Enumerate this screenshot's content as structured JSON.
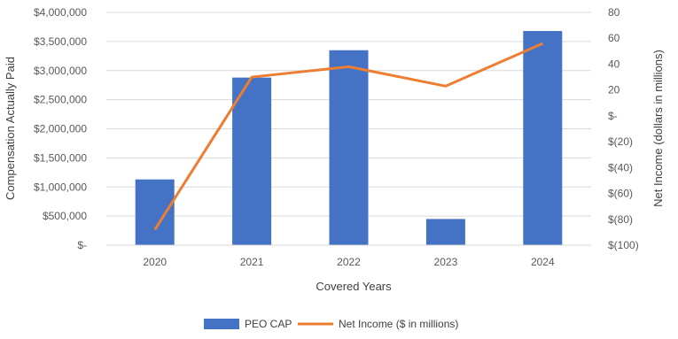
{
  "chart_data": {
    "type": "bar",
    "categories": [
      "2020",
      "2021",
      "2022",
      "2023",
      "2024"
    ],
    "series": [
      {
        "name": "PEO CAP",
        "type": "bar",
        "axis": "left",
        "color": "#4472c4",
        "values": [
          1130000,
          2880000,
          3350000,
          450000,
          3680000
        ]
      },
      {
        "name": "Net Income ($ in millions)",
        "type": "line",
        "axis": "right",
        "color": "#ed7d31",
        "values": [
          -88,
          30,
          38,
          23,
          56
        ]
      }
    ],
    "xlabel": "Covered Years",
    "ylabel": "Compensation Actually Paid",
    "y2label": "Net Income (dollars in millions)",
    "ylim": [
      0,
      4000000
    ],
    "y2lim": [
      -100,
      80
    ],
    "yticks": [
      "$-",
      "$500,000",
      "$1,000,000",
      "$1,500,000",
      "$2,000,000",
      "$2,500,000",
      "$3,000,000",
      "$3,500,000",
      "$4,000,000"
    ],
    "y2ticks": [
      "$(100)",
      "$(80)",
      "$(60)",
      "$(40)",
      "$(20)",
      "$-",
      "20",
      "40",
      "60",
      "80"
    ],
    "y2tickvalues": [
      -100,
      -80,
      -60,
      -40,
      -20,
      0,
      20,
      40,
      60,
      80
    ],
    "grid": true,
    "legend": "bottom"
  }
}
